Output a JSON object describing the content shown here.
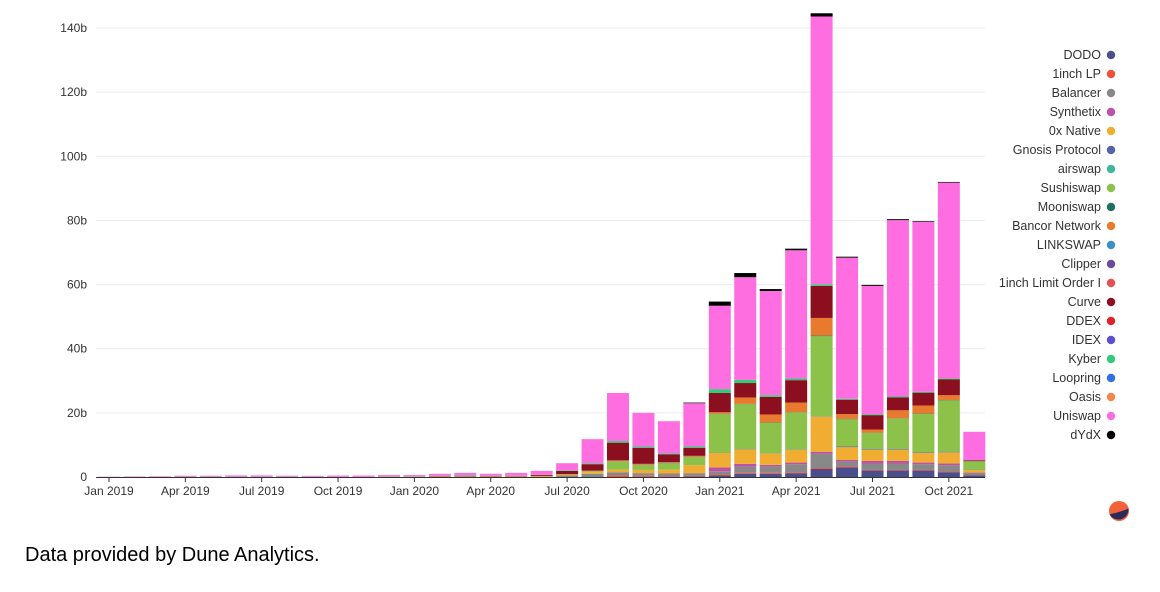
{
  "footer": "Data provided by Dune Analytics.",
  "chart_data": {
    "type": "bar",
    "stacked": true,
    "grid": true,
    "legend_position": "right",
    "ylim": [
      0,
      145
    ],
    "y_ticks": [
      {
        "v": 0,
        "label": "0"
      },
      {
        "v": 20,
        "label": "20b"
      },
      {
        "v": 40,
        "label": "40b"
      },
      {
        "v": 60,
        "label": "60b"
      },
      {
        "v": 80,
        "label": "80b"
      },
      {
        "v": 100,
        "label": "100b"
      },
      {
        "v": 120,
        "label": "120b"
      },
      {
        "v": 140,
        "label": "140b"
      }
    ],
    "x_ticks": [
      {
        "i": 0,
        "label": "Jan 2019"
      },
      {
        "i": 3,
        "label": "Apr 2019"
      },
      {
        "i": 6,
        "label": "Jul 2019"
      },
      {
        "i": 9,
        "label": "Oct 2019"
      },
      {
        "i": 12,
        "label": "Jan 2020"
      },
      {
        "i": 15,
        "label": "Apr 2020"
      },
      {
        "i": 18,
        "label": "Jul 2020"
      },
      {
        "i": 21,
        "label": "Oct 2020"
      },
      {
        "i": 24,
        "label": "Jan 2021"
      },
      {
        "i": 27,
        "label": "Apr 2021"
      },
      {
        "i": 30,
        "label": "Jul 2021"
      },
      {
        "i": 33,
        "label": "Oct 2021"
      }
    ],
    "categories": [
      "2019-01",
      "2019-02",
      "2019-03",
      "2019-04",
      "2019-05",
      "2019-06",
      "2019-07",
      "2019-08",
      "2019-09",
      "2019-10",
      "2019-11",
      "2019-12",
      "2020-01",
      "2020-02",
      "2020-03",
      "2020-04",
      "2020-05",
      "2020-06",
      "2020-07",
      "2020-08",
      "2020-09",
      "2020-10",
      "2020-11",
      "2020-12",
      "2021-01",
      "2021-02",
      "2021-03",
      "2021-04",
      "2021-05",
      "2021-06",
      "2021-07",
      "2021-08",
      "2021-09",
      "2021-10",
      "2021-11"
    ],
    "series": [
      {
        "name": "DODO",
        "color": "#4b4e8c",
        "values": [
          0,
          0,
          0,
          0,
          0,
          0,
          0,
          0,
          0,
          0,
          0,
          0,
          0,
          0,
          0,
          0,
          0,
          0,
          0,
          0,
          0,
          0.1,
          0.1,
          0.2,
          0.5,
          1,
          1,
          1.2,
          2.5,
          3,
          2,
          2,
          2,
          1.5,
          0.5
        ]
      },
      {
        "name": "1inch LP",
        "color": "#f0503c",
        "values": [
          0,
          0,
          0,
          0,
          0,
          0,
          0,
          0,
          0,
          0,
          0,
          0,
          0,
          0,
          0,
          0,
          0,
          0,
          0,
          0,
          0.5,
          0.3,
          0.2,
          0.2,
          0.3,
          0.3,
          0.3,
          0.3,
          0.3,
          0.3,
          0.2,
          0.2,
          0.2,
          0.2,
          0.1
        ]
      },
      {
        "name": "Balancer",
        "color": "#888888",
        "values": [
          0,
          0,
          0,
          0,
          0,
          0,
          0,
          0,
          0,
          0,
          0,
          0,
          0,
          0,
          0,
          0,
          0,
          0,
          0.5,
          1,
          1,
          0.8,
          0.8,
          0.8,
          1,
          2,
          2,
          2.5,
          4.5,
          1.5,
          2,
          2,
          1.8,
          2,
          0.7
        ]
      },
      {
        "name": "Synthetix",
        "color": "#c04fa8",
        "values": [
          0,
          0,
          0,
          0,
          0,
          0,
          0,
          0,
          0,
          0,
          0,
          0,
          0,
          0,
          0,
          0,
          0,
          0,
          0,
          0,
          0,
          0,
          0,
          0,
          1.2,
          0.8,
          0.5,
          0.5,
          0.5,
          0.5,
          0.8,
          0.8,
          0.5,
          0.5,
          0.1
        ]
      },
      {
        "name": "0x Native",
        "color": "#f0ad32",
        "values": [
          0,
          0,
          0,
          0,
          0,
          0,
          0,
          0,
          0,
          0,
          0,
          0,
          0,
          0.1,
          0.1,
          0.1,
          0.1,
          0.2,
          0.3,
          0.5,
          0.8,
          1,
          1.2,
          2.5,
          4.5,
          4.5,
          3.5,
          4,
          11,
          4,
          3.5,
          3.5,
          3,
          3.5,
          0.8
        ]
      },
      {
        "name": "Gnosis Protocol",
        "color": "#5561a8",
        "values": [
          0,
          0,
          0,
          0,
          0,
          0,
          0,
          0,
          0,
          0,
          0,
          0,
          0,
          0,
          0,
          0,
          0,
          0,
          0,
          0,
          0,
          0,
          0,
          0,
          0.1,
          0.1,
          0.1,
          0.1,
          0.1,
          0.2,
          0.2,
          0.2,
          0.2,
          0.2,
          0.1
        ]
      },
      {
        "name": "airswap",
        "color": "#3cb89c",
        "values": [
          0,
          0,
          0,
          0,
          0,
          0,
          0,
          0,
          0,
          0,
          0,
          0,
          0,
          0,
          0,
          0,
          0,
          0,
          0,
          0,
          0,
          0,
          0,
          0,
          0,
          0,
          0,
          0,
          0,
          0,
          0,
          0,
          0,
          0,
          0
        ]
      },
      {
        "name": "Sushiswap",
        "color": "#8dc24a",
        "values": [
          0,
          0,
          0,
          0,
          0,
          0,
          0,
          0,
          0,
          0,
          0,
          0,
          0,
          0,
          0,
          0,
          0,
          0,
          0,
          0.3,
          2.5,
          1.5,
          2,
          2.5,
          12,
          14,
          9.5,
          11.5,
          25,
          8.5,
          5,
          9.5,
          12,
          16,
          2.5
        ]
      },
      {
        "name": "Mooniswap",
        "color": "#1f6e5e",
        "values": [
          0,
          0,
          0,
          0,
          0,
          0,
          0,
          0,
          0,
          0,
          0,
          0,
          0,
          0,
          0,
          0,
          0,
          0,
          0,
          0,
          0.1,
          0.1,
          0.1,
          0.1,
          0.1,
          0.1,
          0.1,
          0.1,
          0.2,
          0.1,
          0.1,
          0.1,
          0.1,
          0.1,
          0
        ]
      },
      {
        "name": "Bancor Network",
        "color": "#e87a2d",
        "values": [
          0,
          0,
          0,
          0,
          0,
          0,
          0,
          0,
          0,
          0,
          0,
          0.1,
          0.1,
          0.1,
          0.1,
          0.1,
          0.1,
          0.1,
          0.1,
          0.2,
          0.3,
          0.3,
          0.2,
          0.3,
          0.5,
          2,
          2.5,
          3,
          5.5,
          1.5,
          1,
          2.5,
          2.5,
          1.5,
          0.1
        ]
      },
      {
        "name": "LINKSWAP",
        "color": "#3a8fc8",
        "values": [
          0,
          0,
          0,
          0,
          0,
          0,
          0,
          0,
          0,
          0,
          0,
          0,
          0,
          0,
          0,
          0,
          0,
          0,
          0,
          0,
          0,
          0,
          0,
          0,
          0,
          0,
          0,
          0,
          0,
          0,
          0,
          0,
          0,
          0,
          0
        ]
      },
      {
        "name": "Clipper",
        "color": "#6e4a9c",
        "values": [
          0,
          0,
          0,
          0,
          0,
          0,
          0,
          0,
          0,
          0,
          0,
          0,
          0,
          0,
          0,
          0,
          0,
          0,
          0,
          0,
          0,
          0,
          0,
          0,
          0,
          0,
          0,
          0,
          0,
          0,
          0,
          0,
          0,
          0,
          0
        ]
      },
      {
        "name": "1inch Limit Order I",
        "color": "#e85050",
        "values": [
          0,
          0,
          0,
          0,
          0,
          0,
          0,
          0,
          0,
          0,
          0,
          0,
          0,
          0,
          0,
          0,
          0,
          0,
          0,
          0,
          0,
          0,
          0,
          0,
          0,
          0,
          0,
          0,
          0,
          0,
          0,
          0,
          0,
          0,
          0
        ]
      },
      {
        "name": "Curve",
        "color": "#8c0f1f",
        "values": [
          0,
          0,
          0,
          0,
          0,
          0,
          0,
          0,
          0,
          0,
          0,
          0,
          0,
          0.1,
          0.1,
          0.1,
          0.1,
          0.3,
          1,
          2,
          5.5,
          5,
          2.5,
          2.5,
          6,
          4.5,
          5.5,
          7,
          10,
          4.5,
          4.5,
          4,
          4,
          5,
          0.3
        ]
      },
      {
        "name": "DDEX",
        "color": "#e0202a",
        "values": [
          0,
          0,
          0,
          0,
          0,
          0,
          0,
          0,
          0,
          0,
          0,
          0,
          0,
          0,
          0,
          0,
          0,
          0,
          0,
          0,
          0,
          0,
          0,
          0,
          0,
          0,
          0,
          0,
          0,
          0,
          0,
          0,
          0,
          0,
          0
        ]
      },
      {
        "name": "IDEX",
        "color": "#5a4fcf",
        "values": [
          0,
          0,
          0,
          0,
          0,
          0,
          0,
          0,
          0,
          0,
          0,
          0,
          0,
          0,
          0,
          0,
          0,
          0,
          0,
          0,
          0,
          0,
          0,
          0,
          0,
          0,
          0,
          0,
          0,
          0,
          0,
          0,
          0,
          0,
          0
        ]
      },
      {
        "name": "Kyber",
        "color": "#31cb7a",
        "values": [
          0,
          0.05,
          0.05,
          0.1,
          0.1,
          0.1,
          0.1,
          0.1,
          0.05,
          0.05,
          0.05,
          0.1,
          0.1,
          0.1,
          0.2,
          0.1,
          0.1,
          0.1,
          0.2,
          0.3,
          0.5,
          0.4,
          0.3,
          0.4,
          1.2,
          1,
          0.5,
          0.5,
          0.5,
          0.3,
          0.3,
          0.3,
          0.3,
          0.3,
          0.1
        ]
      },
      {
        "name": "Loopring",
        "color": "#2f6fe8",
        "values": [
          0,
          0,
          0,
          0,
          0,
          0,
          0,
          0,
          0,
          0,
          0,
          0,
          0,
          0,
          0,
          0,
          0,
          0,
          0,
          0,
          0,
          0,
          0,
          0,
          0,
          0,
          0,
          0,
          0,
          0,
          0,
          0,
          0,
          0,
          0
        ]
      },
      {
        "name": "Oasis",
        "color": "#f5874a",
        "values": [
          0,
          0,
          0,
          0,
          0,
          0,
          0,
          0,
          0,
          0,
          0,
          0,
          0,
          0,
          0,
          0,
          0,
          0,
          0,
          0,
          0,
          0,
          0,
          0,
          0,
          0,
          0,
          0,
          0,
          0,
          0,
          0,
          0,
          0,
          0
        ]
      },
      {
        "name": "Uniswap",
        "color": "#ff6ee0",
        "values": [
          0.1,
          0.15,
          0.2,
          0.3,
          0.3,
          0.4,
          0.4,
          0.3,
          0.3,
          0.4,
          0.4,
          0.4,
          0.4,
          0.6,
          0.8,
          0.6,
          0.9,
          1.2,
          2.2,
          7.5,
          15,
          10.5,
          10,
          13.5,
          26,
          32,
          32.5,
          40,
          83.5,
          44,
          40,
          55,
          53,
          61,
          8.8
        ]
      },
      {
        "name": "dYdX",
        "color": "#000000",
        "values": [
          0,
          0,
          0,
          0,
          0,
          0,
          0,
          0,
          0,
          0,
          0,
          0,
          0,
          0,
          0,
          0,
          0,
          0,
          0,
          0,
          0,
          0,
          0,
          0.2,
          1.3,
          1.3,
          0.6,
          0.5,
          1,
          0.3,
          0.3,
          0.3,
          0.2,
          0.2,
          0
        ]
      }
    ]
  }
}
